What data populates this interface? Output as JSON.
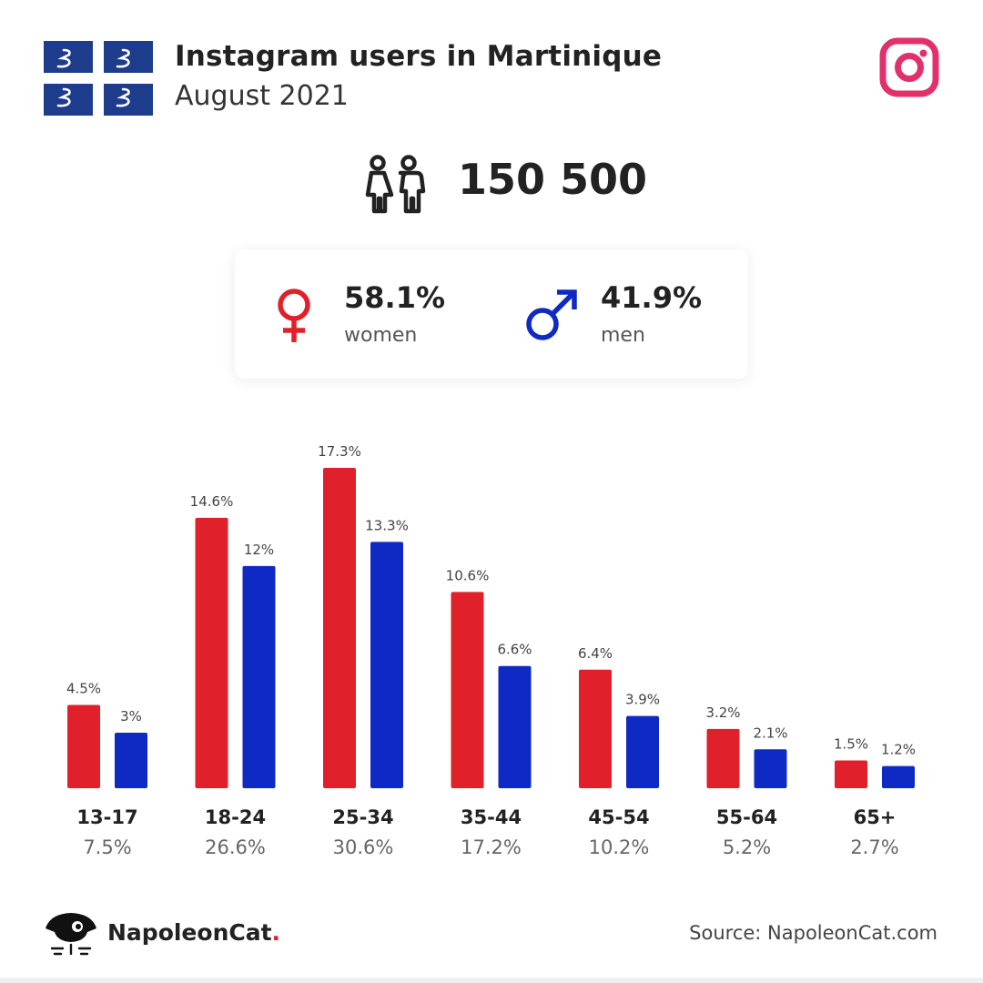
{
  "header": {
    "title": "Instagram users in Martinique",
    "subtitle": "August 2021"
  },
  "summary": {
    "total_users": "150 500"
  },
  "gender": {
    "women_pct": "58.1%",
    "women_label": "women",
    "men_pct": "41.9%",
    "men_label": "men"
  },
  "colors": {
    "women": "#e0202a",
    "men": "#0f2ac4",
    "instagram": "#e1306c",
    "flag_blue": "#1e3c8c"
  },
  "icons": {
    "flag": "martinique-flag-icon",
    "instagram": "instagram-icon",
    "people": "people-icon",
    "female": "female-symbol-icon",
    "male": "male-symbol-icon",
    "brand": "napoleoncat-logo-icon"
  },
  "chart_data": {
    "type": "bar",
    "categories": [
      "13-17",
      "18-24",
      "25-34",
      "35-44",
      "45-54",
      "55-64",
      "65+"
    ],
    "category_totals": [
      "7.5%",
      "26.6%",
      "30.6%",
      "17.2%",
      "10.2%",
      "5.2%",
      "2.7%"
    ],
    "series": [
      {
        "key": "women",
        "values": [
          4.5,
          14.6,
          17.3,
          10.6,
          6.4,
          3.2,
          1.5
        ],
        "labels": [
          "4.5%",
          "14.6%",
          "17.3%",
          "10.6%",
          "6.4%",
          "3.2%",
          "1.5%"
        ]
      },
      {
        "key": "men",
        "values": [
          3,
          12,
          13.3,
          6.6,
          3.9,
          2.1,
          1.2
        ],
        "labels": [
          "3%",
          "12%",
          "13.3%",
          "6.6%",
          "3.9%",
          "2.1%",
          "1.2%"
        ]
      }
    ],
    "ylim": [
      0,
      17.3
    ],
    "grid": false,
    "xlabel": "",
    "ylabel": ""
  },
  "footer": {
    "brand_name": "NapoleonCat",
    "brand_dot": ".",
    "source": "Source: NapoleonCat.com"
  }
}
